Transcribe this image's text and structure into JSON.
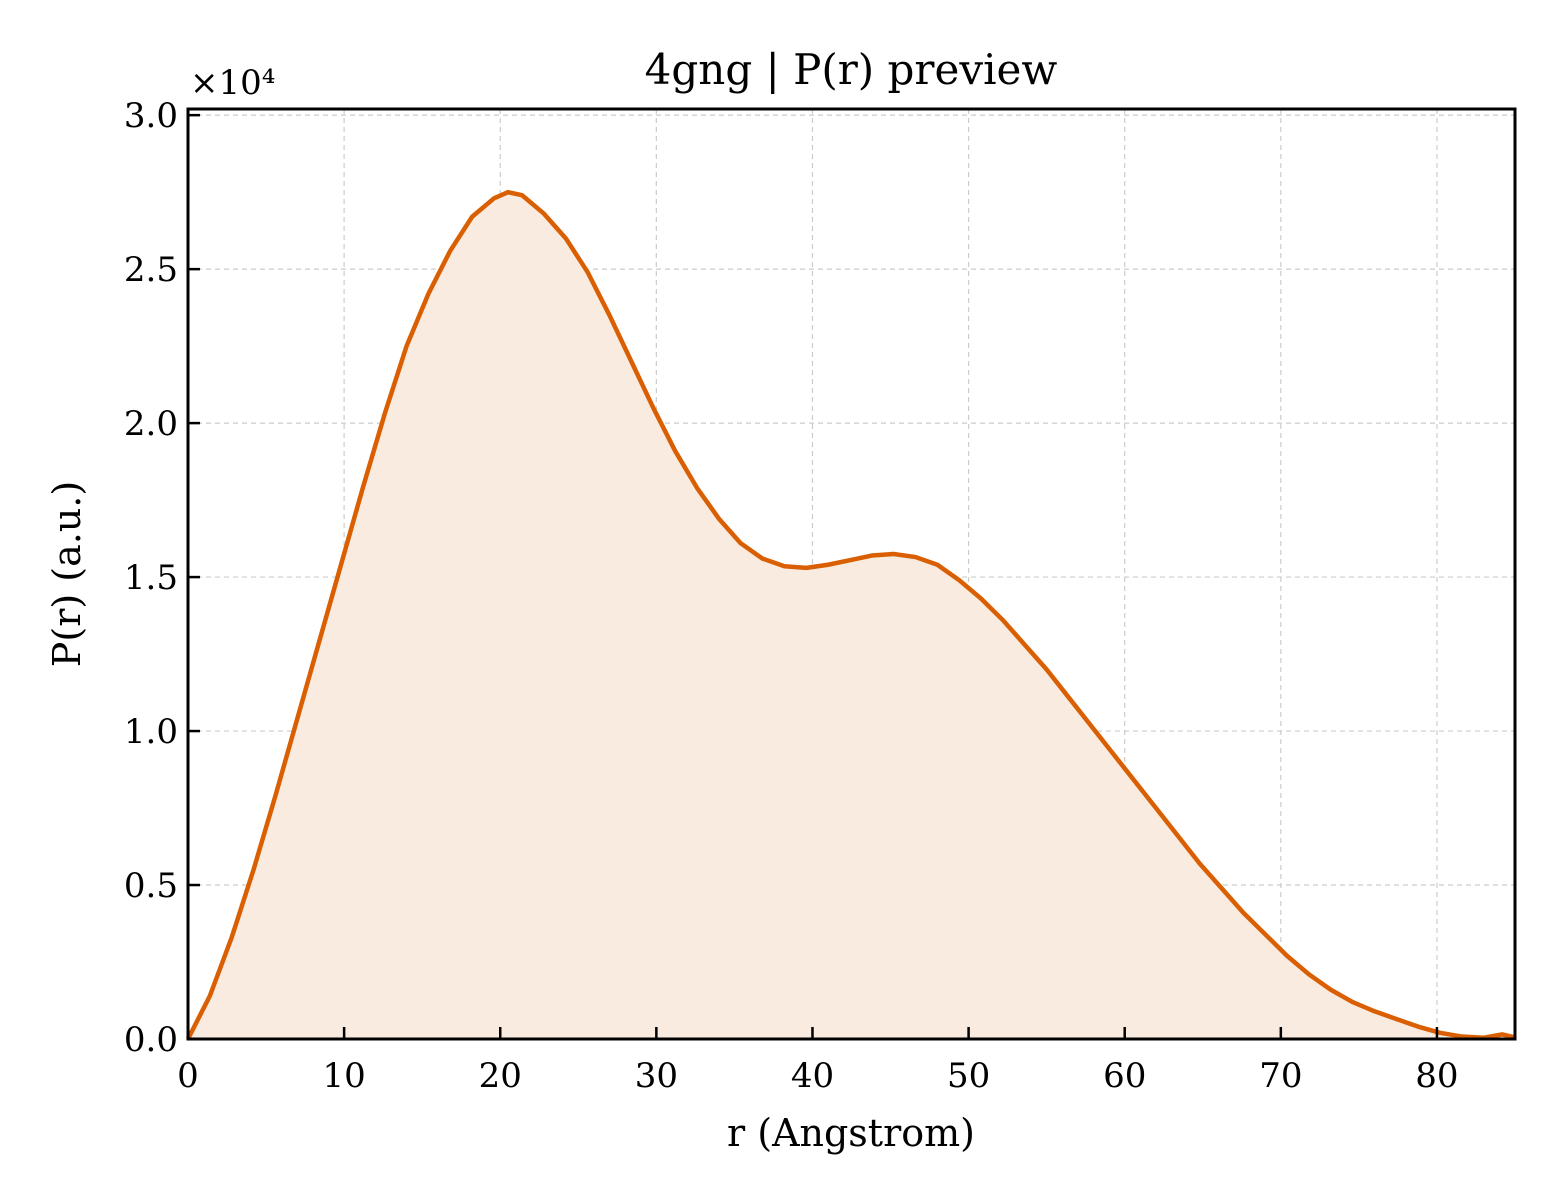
{
  "chart_data": {
    "type": "area",
    "title": "4gng | P(r) preview",
    "xlabel": "r (Angstrom)",
    "ylabel": "P(r) (a.u.)",
    "y_multiplier_label": "×10⁴",
    "xlim": [
      0,
      85
    ],
    "ylim": [
      0,
      30200
    ],
    "xticks": [
      0,
      10,
      20,
      30,
      40,
      50,
      60,
      70,
      80
    ],
    "xtick_labels": [
      "0",
      "10",
      "20",
      "30",
      "40",
      "50",
      "60",
      "70",
      "80"
    ],
    "yticks": [
      0,
      5000,
      10000,
      15000,
      20000,
      25000,
      30000
    ],
    "ytick_labels": [
      "0.0",
      "0.5",
      "1.0",
      "1.5",
      "2.0",
      "2.5",
      "3.0"
    ],
    "grid": true,
    "line_color": "#d95f02",
    "fill_color": "#f9ebe0",
    "x": [
      0,
      1.4,
      2.8,
      4.2,
      5.6,
      7.0,
      8.4,
      9.8,
      11.2,
      12.6,
      14.0,
      15.4,
      16.8,
      18.2,
      19.6,
      20.5,
      21.4,
      22.8,
      24.2,
      25.6,
      27.0,
      28.4,
      29.8,
      31.2,
      32.6,
      34.0,
      35.4,
      36.8,
      38.2,
      39.6,
      41.0,
      42.4,
      43.8,
      45.2,
      46.6,
      48.0,
      49.4,
      50.8,
      52.2,
      53.6,
      55.0,
      56.4,
      57.8,
      59.2,
      60.6,
      62.0,
      63.4,
      64.8,
      66.2,
      67.6,
      69.0,
      70.4,
      71.8,
      73.2,
      74.6,
      76.0,
      77.4,
      78.8,
      80.2,
      81.6,
      83.0,
      84.2,
      85.0
    ],
    "y": [
      0,
      1400,
      3300,
      5500,
      7900,
      10400,
      12900,
      15400,
      17900,
      20300,
      22500,
      24200,
      25600,
      26700,
      27300,
      27500,
      27400,
      26800,
      26000,
      24900,
      23500,
      22000,
      20500,
      19100,
      17900,
      16900,
      16100,
      15600,
      15350,
      15300,
      15400,
      15550,
      15700,
      15750,
      15650,
      15400,
      14900,
      14300,
      13600,
      12800,
      12000,
      11100,
      10200,
      9300,
      8400,
      7500,
      6600,
      5700,
      4900,
      4100,
      3400,
      2700,
      2100,
      1600,
      1200,
      900,
      650,
      400,
      200,
      80,
      40,
      150,
      50
    ]
  }
}
